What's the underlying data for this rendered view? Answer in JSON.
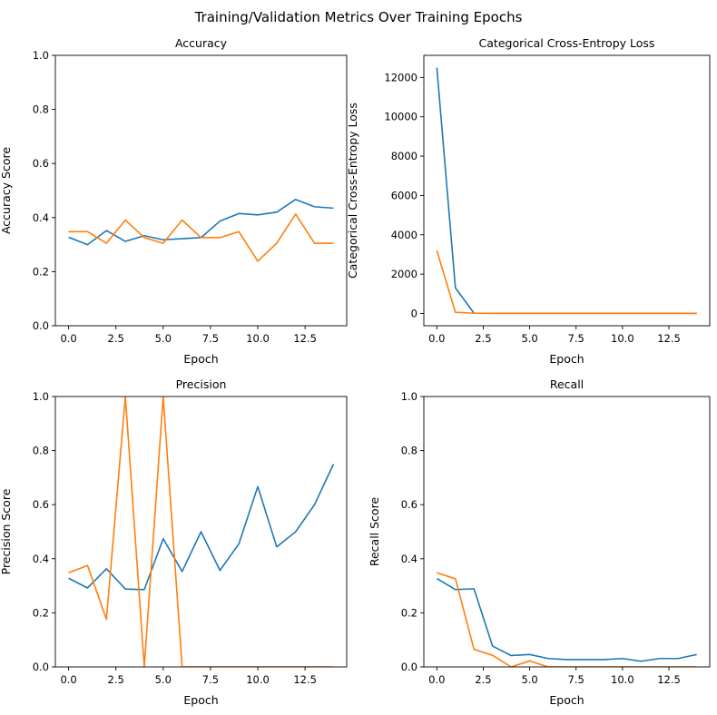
{
  "figure": {
    "suptitle": "Training/Validation Metrics Over Training Epochs"
  },
  "colors": {
    "train": "#1f77b4",
    "val": "#ff7f0e"
  },
  "chart_data": [
    {
      "id": "accuracy",
      "type": "line",
      "title": "Accuracy",
      "xlabel": "Epoch",
      "ylabel": "Accuracy Score",
      "xlim": [
        -0.7,
        14.7
      ],
      "ylim": [
        0,
        1
      ],
      "xticks": [
        0,
        2.5,
        5,
        7.5,
        10,
        12.5
      ],
      "xtick_labels": [
        "0.0",
        "2.5",
        "5.0",
        "7.5",
        "10.0",
        "12.5"
      ],
      "yticks": [
        0,
        0.2,
        0.4,
        0.6,
        0.8,
        1.0
      ],
      "ytick_labels": [
        "0.0",
        "0.2",
        "0.4",
        "0.6",
        "0.8",
        "1.0"
      ],
      "x": [
        0,
        1,
        2,
        3,
        4,
        5,
        6,
        7,
        8,
        9,
        10,
        11,
        12,
        13,
        14
      ],
      "series": [
        {
          "color": "#1f77b4",
          "values": [
            0.327,
            0.3,
            0.352,
            0.312,
            0.333,
            0.318,
            0.322,
            0.326,
            0.387,
            0.415,
            0.41,
            0.42,
            0.467,
            0.44,
            0.435
          ]
        },
        {
          "color": "#ff7f0e",
          "values": [
            0.348,
            0.348,
            0.305,
            0.391,
            0.326,
            0.305,
            0.391,
            0.326,
            0.326,
            0.348,
            0.239,
            0.305,
            0.413,
            0.305,
            0.305
          ]
        }
      ]
    },
    {
      "id": "loss",
      "type": "line",
      "title": "Categorical Cross-Entropy Loss",
      "xlabel": "Epoch",
      "ylabel": "Categorical Cross-Entropy Loss",
      "xlim": [
        -0.7,
        14.7
      ],
      "ylim": [
        -625,
        13125
      ],
      "xticks": [
        0,
        2.5,
        5,
        7.5,
        10,
        12.5
      ],
      "xtick_labels": [
        "0.0",
        "2.5",
        "5.0",
        "7.5",
        "10.0",
        "12.5"
      ],
      "yticks": [
        0,
        2000,
        4000,
        6000,
        8000,
        10000,
        12000
      ],
      "ytick_labels": [
        "0",
        "2000",
        "4000",
        "6000",
        "8000",
        "10000",
        "12000"
      ],
      "x": [
        0,
        1,
        2,
        3,
        4,
        5,
        6,
        7,
        8,
        9,
        10,
        11,
        12,
        13,
        14
      ],
      "series": [
        {
          "color": "#1f77b4",
          "values": [
            12500,
            1300,
            15,
            5,
            5,
            5,
            5,
            5,
            5,
            5,
            5,
            5,
            5,
            5,
            5
          ]
        },
        {
          "color": "#ff7f0e",
          "values": [
            3200,
            60,
            10,
            5,
            5,
            5,
            5,
            5,
            5,
            5,
            5,
            5,
            5,
            5,
            5
          ]
        }
      ]
    },
    {
      "id": "precision",
      "type": "line",
      "title": "Precision",
      "xlabel": "Epoch",
      "ylabel": "Precision Score",
      "xlim": [
        -0.7,
        14.7
      ],
      "ylim": [
        0,
        1
      ],
      "xticks": [
        0,
        2.5,
        5,
        7.5,
        10,
        12.5
      ],
      "xtick_labels": [
        "0.0",
        "2.5",
        "5.0",
        "7.5",
        "10.0",
        "12.5"
      ],
      "yticks": [
        0,
        0.2,
        0.4,
        0.6,
        0.8,
        1.0
      ],
      "ytick_labels": [
        "0.0",
        "0.2",
        "0.4",
        "0.6",
        "0.8",
        "1.0"
      ],
      "x": [
        0,
        1,
        2,
        3,
        4,
        5,
        6,
        7,
        8,
        9,
        10,
        11,
        12,
        13,
        14
      ],
      "series": [
        {
          "color": "#1f77b4",
          "values": [
            0.328,
            0.292,
            0.363,
            0.288,
            0.286,
            0.474,
            0.353,
            0.5,
            0.357,
            0.455,
            0.667,
            0.444,
            0.5,
            0.6,
            0.75
          ]
        },
        {
          "color": "#ff7f0e",
          "values": [
            0.348,
            0.375,
            0.176,
            1.0,
            0.0,
            1.0,
            0.0,
            0.0,
            0.0,
            0.0,
            0.0,
            0.0,
            0.0,
            0.0,
            0.0
          ]
        }
      ]
    },
    {
      "id": "recall",
      "type": "line",
      "title": "Recall",
      "xlabel": "Epoch",
      "ylabel": "Recall Score",
      "xlim": [
        -0.7,
        14.7
      ],
      "ylim": [
        0,
        1
      ],
      "xticks": [
        0,
        2.5,
        5,
        7.5,
        10,
        12.5
      ],
      "xtick_labels": [
        "0.0",
        "2.5",
        "5.0",
        "7.5",
        "10.0",
        "12.5"
      ],
      "yticks": [
        0,
        0.2,
        0.4,
        0.6,
        0.8,
        1.0
      ],
      "ytick_labels": [
        "0.0",
        "0.2",
        "0.4",
        "0.6",
        "0.8",
        "1.0"
      ],
      "x": [
        0,
        1,
        2,
        3,
        4,
        5,
        6,
        7,
        8,
        9,
        10,
        11,
        12,
        13,
        14
      ],
      "series": [
        {
          "color": "#1f77b4",
          "values": [
            0.327,
            0.286,
            0.289,
            0.077,
            0.042,
            0.046,
            0.031,
            0.027,
            0.027,
            0.027,
            0.031,
            0.021,
            0.031,
            0.031,
            0.046
          ]
        },
        {
          "color": "#ff7f0e",
          "values": [
            0.348,
            0.326,
            0.065,
            0.043,
            0.0,
            0.022,
            0.0,
            0.0,
            0.0,
            0.0,
            0.0,
            0.0,
            0.0,
            0.0,
            0.0
          ]
        }
      ]
    }
  ]
}
